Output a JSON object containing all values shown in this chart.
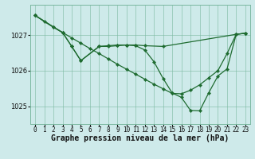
{
  "background_color": "#ceeaea",
  "grid_color": "#7ab8a0",
  "line_color": "#1e6b30",
  "marker_color": "#1e6b30",
  "title": "Graphe pression niveau de la mer (hPa)",
  "title_fontsize": 7,
  "tick_fontsize": 5.5,
  "ylim": [
    1024.5,
    1027.85
  ],
  "xlim": [
    -0.5,
    23.5
  ],
  "yticks": [
    1025,
    1026,
    1027
  ],
  "xticks": [
    0,
    1,
    2,
    3,
    4,
    5,
    6,
    7,
    8,
    9,
    10,
    11,
    12,
    13,
    14,
    15,
    16,
    17,
    18,
    19,
    20,
    21,
    22,
    23
  ],
  "line1_x": [
    0,
    1,
    2,
    3,
    4,
    5,
    6,
    7,
    8,
    9,
    10,
    11,
    12,
    13,
    14,
    15,
    16,
    17,
    18,
    19,
    20,
    21,
    22,
    23
  ],
  "line1_y": [
    1027.55,
    1027.38,
    1027.22,
    1027.07,
    1026.92,
    1026.77,
    1026.62,
    1026.48,
    1026.33,
    1026.18,
    1026.04,
    1025.9,
    1025.76,
    1025.62,
    1025.49,
    1025.36,
    1025.35,
    1025.45,
    1025.6,
    1025.8,
    1026.0,
    1026.48,
    1027.02,
    1027.05
  ],
  "line2_x": [
    0,
    2,
    3,
    4,
    5,
    7,
    8,
    9,
    10,
    11,
    12,
    14,
    22,
    23
  ],
  "line2_y": [
    1027.55,
    1027.22,
    1027.07,
    1026.68,
    1026.28,
    1026.68,
    1026.7,
    1026.72,
    1026.72,
    1026.72,
    1026.7,
    1026.68,
    1027.02,
    1027.05
  ],
  "line3_x": [
    0,
    3,
    4,
    5,
    7,
    8,
    9,
    10,
    11,
    12,
    13,
    14,
    15,
    16,
    17,
    18,
    19,
    20,
    21,
    22,
    23
  ],
  "line3_y": [
    1027.55,
    1027.07,
    1026.68,
    1026.28,
    1026.68,
    1026.68,
    1026.7,
    1026.72,
    1026.7,
    1026.58,
    1026.25,
    1025.78,
    1025.37,
    1025.25,
    1024.88,
    1024.87,
    1025.38,
    1025.85,
    1026.05,
    1027.02,
    1027.05
  ]
}
